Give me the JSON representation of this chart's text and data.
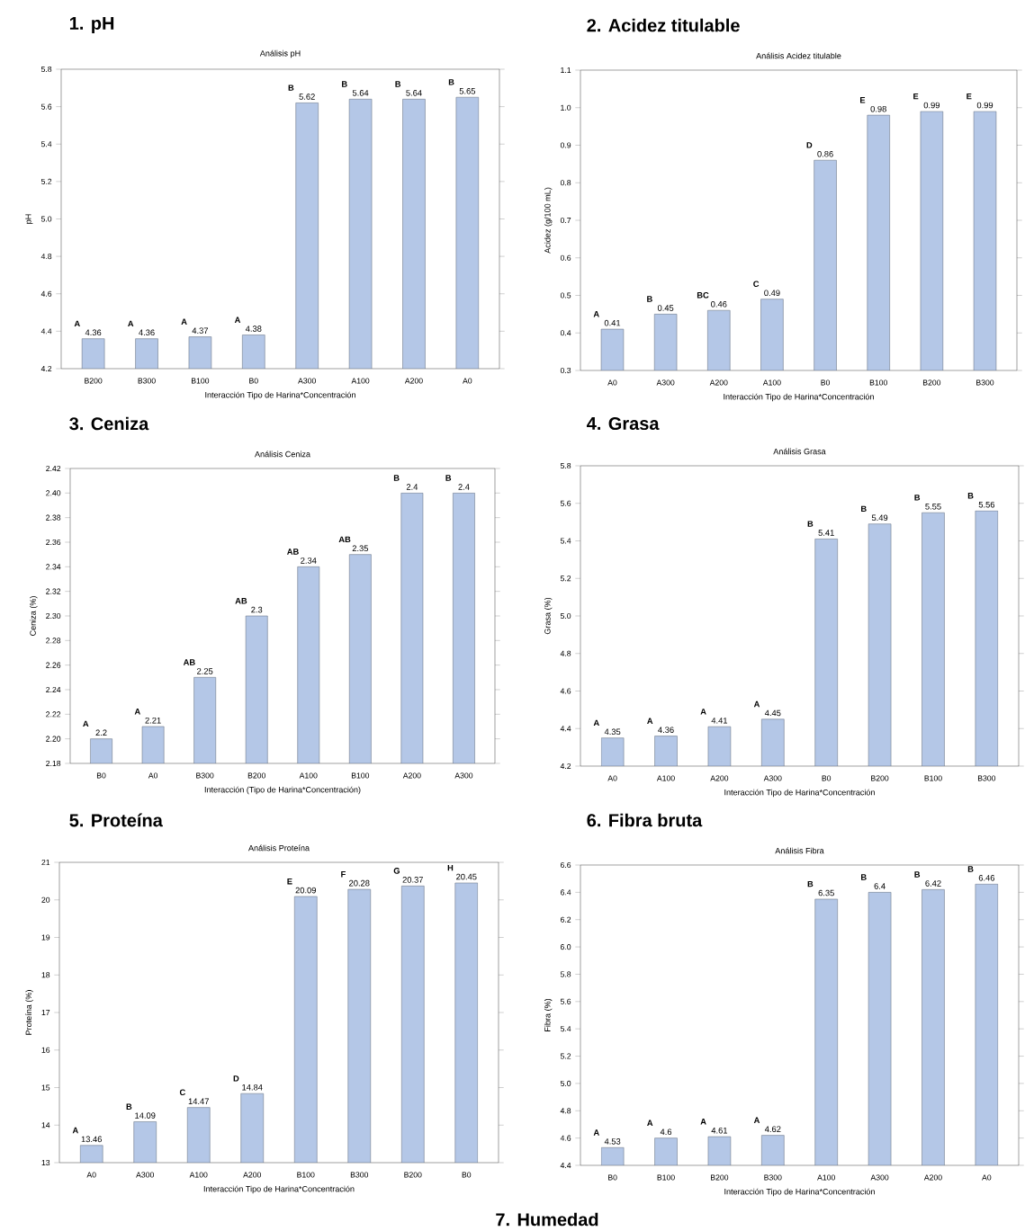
{
  "chart_data": [
    {
      "type": "bar",
      "title": "1. pH",
      "subtitle": "Análisis pH",
      "xlabel": "Interacción Tipo de Harina*Concentración",
      "ylabel": "pH",
      "categories": [
        "B200",
        "B300",
        "B100",
        "B0",
        "A300",
        "A100",
        "A200",
        "A0"
      ],
      "values": [
        4.36,
        4.36,
        4.37,
        4.38,
        5.62,
        5.64,
        5.64,
        5.65
      ],
      "color": "#b4c7e7",
      "data_labels": true,
      "ylim": [
        4.2,
        5.8
      ],
      "yticks": [
        4.2,
        4.4,
        4.6,
        4.8,
        {
          "value": 5.0,
          "label": "5.0"
        },
        5.2,
        5.4,
        5.6,
        5.8
      ],
      "annotations": [
        "A",
        "A",
        "A",
        "A",
        "B",
        "B",
        "B",
        "B"
      ]
    },
    {
      "type": "bar",
      "title": "2. Acidez titulable",
      "subtitle": "Análisis Acidez titulable",
      "xlabel": "Interacción Tipo de Harina*Concentración",
      "ylabel": "Acidez (g/100 mL)",
      "categories": [
        "A0",
        "A300",
        "A200",
        "A100",
        "B0",
        "B100",
        "B200",
        "B300"
      ],
      "values": [
        0.41,
        0.45,
        0.46,
        0.49,
        0.86,
        0.98,
        0.99,
        0.99
      ],
      "color": "#b4c7e7",
      "data_labels": true,
      "ylim": [
        0.3,
        1.1
      ],
      "yticks": [
        0.3,
        0.4,
        0.5,
        0.6,
        0.7,
        0.8,
        0.9,
        {
          "value": 1.0,
          "label": "1.0"
        },
        1.1
      ],
      "annotations": [
        "A",
        "B",
        "BC",
        "C",
        "D",
        "E",
        "E",
        "E"
      ]
    },
    {
      "type": "bar",
      "title": "3. Ceniza",
      "subtitle": "Análisis Ceniza",
      "xlabel": "Interacción (Tipo de Harina*Concentración)",
      "ylabel": "Ceniza (%)",
      "categories": [
        "B0",
        "A0",
        "B300",
        "B200",
        "A100",
        "B100",
        "A200",
        "A300"
      ],
      "values": [
        2.2,
        2.21,
        2.25,
        2.3,
        2.34,
        2.35,
        2.4,
        2.4
      ],
      "color": "#b4c7e7",
      "data_labels": true,
      "ylim": [
        2.18,
        2.42
      ],
      "yticks": [
        2.18,
        {
          "value": 2.2,
          "label": "2.20"
        },
        2.22,
        2.24,
        2.26,
        2.28,
        {
          "value": 2.3,
          "label": "2.30"
        },
        2.32,
        2.34,
        2.36,
        2.38,
        {
          "value": 2.4,
          "label": "2.40"
        },
        2.42
      ],
      "annotations": [
        "A",
        "A",
        "AB",
        "AB",
        "AB",
        "AB",
        "B",
        "B"
      ]
    },
    {
      "type": "bar",
      "title": "4. Grasa",
      "subtitle": "Análisis Grasa",
      "xlabel": "Interacción Tipo de Harina*Concentración",
      "ylabel": "Grasa (%)",
      "categories": [
        "A0",
        "A100",
        "A200",
        "A300",
        "B0",
        "B200",
        "B100",
        "B300"
      ],
      "values": [
        4.35,
        4.36,
        4.41,
        4.45,
        5.41,
        5.49,
        5.55,
        5.56
      ],
      "color": "#b4c7e7",
      "data_labels": true,
      "ylim": [
        4.2,
        5.8
      ],
      "yticks": [
        4.2,
        4.4,
        4.6,
        4.8,
        {
          "value": 5.0,
          "label": "5.0"
        },
        5.2,
        5.4,
        5.6,
        5.8
      ],
      "annotations": [
        "A",
        "A",
        "A",
        "A",
        "B",
        "B",
        "B",
        "B"
      ]
    },
    {
      "type": "bar",
      "title": "5. Proteína",
      "subtitle": "Análisis Proteína",
      "xlabel": "Interacción Tipo de Harina*Concentración",
      "ylabel": "Proteína (%)",
      "categories": [
        "A0",
        "A300",
        "A100",
        "A200",
        "B100",
        "B300",
        "B200",
        "B0"
      ],
      "values": [
        13.46,
        14.09,
        14.47,
        14.84,
        20.09,
        20.28,
        20.37,
        20.45
      ],
      "color": "#b4c7e7",
      "data_labels": true,
      "ylim": [
        13,
        21
      ],
      "yticks": [
        13,
        14,
        15,
        16,
        17,
        18,
        19,
        20,
        21
      ],
      "annotations": [
        "A",
        "B",
        "C",
        "D",
        "E",
        "F",
        "G",
        "H"
      ]
    },
    {
      "type": "bar",
      "title": "6. Fibra bruta",
      "subtitle": "Análisis Fibra",
      "xlabel": "Interacción Tipo de Harina*Concentración",
      "ylabel": "Fibra (%)",
      "categories": [
        "B0",
        "B100",
        "B200",
        "B300",
        "A100",
        "A300",
        "A200",
        "A0"
      ],
      "values": [
        4.53,
        4.6,
        4.61,
        4.62,
        6.35,
        6.4,
        6.42,
        6.46
      ],
      "color": "#b4c7e7",
      "data_labels": true,
      "ylim": [
        4.4,
        6.6
      ],
      "yticks": [
        4.4,
        4.6,
        4.8,
        {
          "value": 5.0,
          "label": "5.0"
        },
        5.2,
        5.4,
        5.6,
        5.8,
        {
          "value": 6.0,
          "label": "6.0"
        },
        6.2,
        6.4,
        6.6
      ],
      "annotations": [
        "A",
        "A",
        "A",
        "A",
        "B",
        "B",
        "B",
        "B"
      ]
    },
    {
      "type": "other",
      "title": "7. Humedad"
    }
  ]
}
